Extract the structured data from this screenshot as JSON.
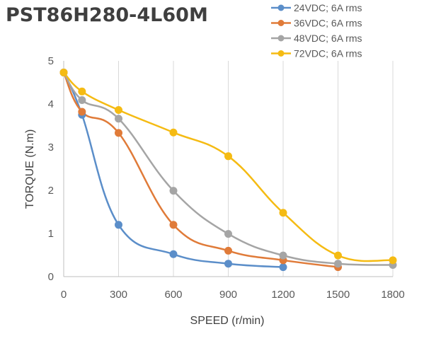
{
  "chart_data": {
    "type": "line",
    "title": "PST86H280-4L60M",
    "xlabel": "SPEED (r/min)",
    "ylabel": "TORQUE (N.m)",
    "x_ticks": [
      "0",
      "300",
      "600",
      "900",
      "1200",
      "1500",
      "1800"
    ],
    "y_ticks": [
      "0",
      "1",
      "2",
      "3",
      "4",
      "5"
    ],
    "xlim": [
      0,
      1800
    ],
    "ylim": [
      0,
      5
    ],
    "grid": "vertical",
    "legend_position": "top-right",
    "smooth": true,
    "series": [
      {
        "name": "24VDC; 6A rms",
        "color": "#5b8ec9",
        "x": [
          0,
          100,
          300,
          600,
          900,
          1200
        ],
        "y": [
          4.73,
          3.75,
          1.2,
          0.52,
          0.3,
          0.22
        ]
      },
      {
        "name": "36VDC; 6A rms",
        "color": "#e07b39",
        "x": [
          0,
          100,
          300,
          600,
          900,
          1200,
          1500
        ],
        "y": [
          4.73,
          3.82,
          3.33,
          1.2,
          0.6,
          0.38,
          0.22
        ]
      },
      {
        "name": "48VDC; 6A rms",
        "color": "#a5a5a5",
        "x": [
          0,
          100,
          300,
          600,
          900,
          1200,
          1500,
          1800
        ],
        "y": [
          4.73,
          4.09,
          3.66,
          1.99,
          0.99,
          0.49,
          0.3,
          0.27
        ]
      },
      {
        "name": "72VDC; 6A rms",
        "color": "#f5bb13",
        "x": [
          0,
          100,
          300,
          600,
          900,
          1200,
          1500,
          1800
        ],
        "y": [
          4.73,
          4.29,
          3.86,
          3.34,
          2.79,
          1.48,
          0.49,
          0.38
        ]
      }
    ]
  }
}
